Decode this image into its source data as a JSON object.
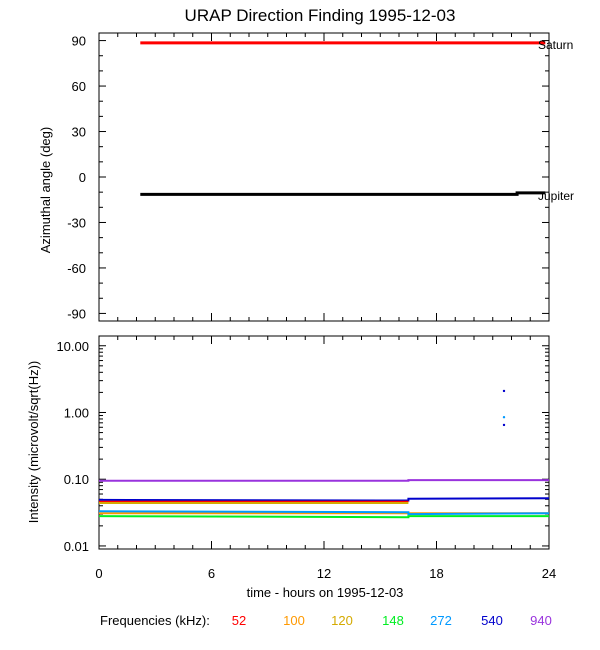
{
  "title": "URAP Direction Finding  1995-12-03",
  "x_axis": {
    "label": "time - hours on 1995-12-03",
    "ticks": [
      {
        "value": 0,
        "label": "0"
      },
      {
        "value": 6,
        "label": "6"
      },
      {
        "value": 12,
        "label": "12"
      },
      {
        "value": 18,
        "label": "18"
      },
      {
        "value": 24,
        "label": "24"
      }
    ]
  },
  "top_panel": {
    "ylabel": "Azimuthal angle (deg)",
    "ylim": [
      -95,
      95
    ],
    "ticks": [
      {
        "value": 90,
        "label": "90"
      },
      {
        "value": 60,
        "label": "60"
      },
      {
        "value": 30,
        "label": "30"
      },
      {
        "value": 0,
        "label": "0"
      },
      {
        "value": -30,
        "label": "-30"
      },
      {
        "value": -60,
        "label": "-60"
      },
      {
        "value": -90,
        "label": "-90"
      }
    ]
  },
  "bottom_panel": {
    "ylabel": "Intensity (microvolt/sqrt(Hz))",
    "yscale": "log",
    "ylim": [
      0.009,
      14
    ],
    "ticks": [
      {
        "value": 10,
        "label": "10.00"
      },
      {
        "value": 1,
        "label": "1.00"
      },
      {
        "value": 0.1,
        "label": "0.10"
      },
      {
        "value": 0.01,
        "label": "0.01"
      }
    ]
  },
  "legend": {
    "label": "Frequencies (kHz):",
    "items": [
      {
        "name": "52",
        "color": "#ff0000"
      },
      {
        "name": "100",
        "color": "#ff9900"
      },
      {
        "name": "120",
        "color": "#d4aa00"
      },
      {
        "name": "148",
        "color": "#00ee22"
      },
      {
        "name": "272",
        "color": "#0099ff"
      },
      {
        "name": "540",
        "color": "#0000cc"
      },
      {
        "name": "940",
        "color": "#9933dd"
      }
    ]
  },
  "chart_data": [
    {
      "type": "line",
      "panel": "top",
      "ylabel": "Azimuthal angle (deg)",
      "xlabel": "time - hours on 1995-12-03",
      "xlim": [
        0,
        24
      ],
      "ylim": [
        -95,
        95
      ],
      "series": [
        {
          "name": "Saturn",
          "color": "#ff0000",
          "x": [
            2.2,
            23.8
          ],
          "y": [
            88.5,
            88.5
          ]
        },
        {
          "name": "Jupiter",
          "color": "#000000",
          "x": [
            2.2,
            22.3,
            22.3,
            23.8
          ],
          "y": [
            -11.5,
            -11.5,
            -10.5,
            -10.5
          ]
        }
      ]
    },
    {
      "type": "line",
      "panel": "bottom",
      "ylabel": "Intensity (microvolt/sqrt(Hz))",
      "xlabel": "time - hours on 1995-12-03",
      "xlim": [
        0,
        24
      ],
      "yscale": "log",
      "ylim": [
        0.009,
        14
      ],
      "series": [
        {
          "name": "940",
          "color": "#9933dd",
          "x": [
            0,
            16.5,
            16.5,
            24
          ],
          "y": [
            0.095,
            0.095,
            0.097,
            0.097
          ]
        },
        {
          "name": "540",
          "color": "#0000cc",
          "x": [
            0,
            16.5,
            16.5,
            24
          ],
          "y": [
            0.049,
            0.048,
            0.051,
            0.052
          ]
        },
        {
          "name": "52",
          "color": "#ff0000",
          "x": [
            0,
            16.5
          ],
          "y": [
            0.046,
            0.046
          ]
        },
        {
          "name": "120",
          "color": "#d4aa00",
          "x": [
            0,
            16.5
          ],
          "y": [
            0.044,
            0.044
          ]
        },
        {
          "name": "100",
          "color": "#ff9900",
          "x": [
            0,
            16.5,
            16.5,
            24
          ],
          "y": [
            0.031,
            0.031,
            0.031,
            0.031
          ]
        },
        {
          "name": "272",
          "color": "#0099ff",
          "x": [
            0,
            16.5,
            16.5,
            24
          ],
          "y": [
            0.033,
            0.032,
            0.03,
            0.031
          ]
        },
        {
          "name": "148",
          "color": "#00ee22",
          "x": [
            0,
            16.5,
            16.5,
            24
          ],
          "y": [
            0.028,
            0.027,
            0.028,
            0.028
          ]
        }
      ],
      "points": [
        {
          "series": "540",
          "x": 21.6,
          "y": 2.1
        },
        {
          "series": "272",
          "x": 21.6,
          "y": 0.85
        },
        {
          "series": "540",
          "x": 21.6,
          "y": 0.65
        }
      ]
    }
  ],
  "series_markers": [
    {
      "name": "Saturn"
    },
    {
      "name": "Jupiter"
    }
  ]
}
